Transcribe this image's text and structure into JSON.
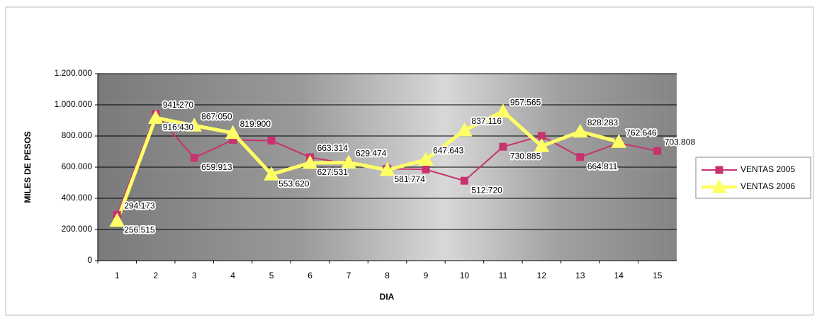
{
  "chart_data": {
    "type": "line",
    "x_label": "DIA",
    "y_label": "MILES DE PESOS",
    "categories": [
      "1",
      "2",
      "3",
      "4",
      "5",
      "6",
      "7",
      "8",
      "9",
      "10",
      "11",
      "12",
      "13",
      "14",
      "15"
    ],
    "ylim": [
      0,
      1200000
    ],
    "yticks": [
      0,
      {
        "value": 200000,
        "label": "200.000"
      },
      {
        "value": 400000,
        "label": "400.000"
      },
      {
        "value": 600000,
        "label": "600.000"
      },
      {
        "value": 800000,
        "label": "800.000"
      },
      {
        "value": 1000000,
        "label": "1.000.000"
      },
      {
        "value": 1200000,
        "label": "1.200.000"
      }
    ],
    "grid": true,
    "legend": "right",
    "series": [
      {
        "name": "VENTAS 2005",
        "color": "#c8326e",
        "marker": "square",
        "values": [
          294173,
          941270,
          659913,
          775000,
          770000,
          663314,
          620000,
          590000,
          585000,
          512720,
          730885,
          800000,
          664811,
          755000,
          703808
        ],
        "value_labels": [
          "294.173",
          "941.270",
          "659.913",
          null,
          null,
          "663.314",
          null,
          null,
          null,
          "512.720",
          "730.885",
          null,
          "664.811",
          null,
          "703.808"
        ]
      },
      {
        "name": "VENTAS 2006",
        "color": "#ffff66",
        "marker": "triangle",
        "values": [
          256515,
          916430,
          867050,
          819900,
          553620,
          627531,
          629474,
          581774,
          647643,
          837116,
          957565,
          735000,
          828283,
          762646,
          null
        ],
        "value_labels": [
          "256.515",
          "916.430",
          "867.050",
          "819.900",
          "553.620",
          "627.531",
          "629.474",
          "581.774",
          "647.643",
          "837.116",
          "957.565",
          null,
          "828.283",
          "762.646",
          null
        ]
      }
    ]
  }
}
